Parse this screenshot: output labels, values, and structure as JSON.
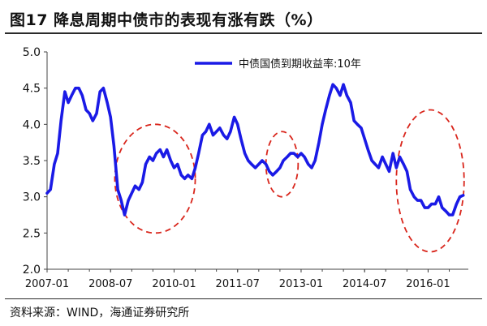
{
  "title": "图17 降息周期中债市的表现有涨有跌（%）",
  "source": "资料来源：WIND，海通证券研究所",
  "chart_data": {
    "type": "line",
    "xlabel": "",
    "ylabel": "",
    "ylim": [
      2.0,
      5.0
    ],
    "yticks": [
      "2.0",
      "2.5",
      "3.0",
      "3.5",
      "4.0",
      "4.5",
      "5.0"
    ],
    "xticks": [
      "2007-01",
      "2008-07",
      "2010-01",
      "2011-07",
      "2013-01",
      "2014-07",
      "2016-01"
    ],
    "grid": false,
    "legend_position": "top-right",
    "series_color": "#1a1ae6",
    "highlight_color": "#d9261c",
    "series": [
      {
        "name": "中债国债到期收益率:10年",
        "x": [
          2007.0,
          2007.08,
          2007.17,
          2007.25,
          2007.33,
          2007.42,
          2007.5,
          2007.58,
          2007.67,
          2007.75,
          2007.83,
          2007.92,
          2008.0,
          2008.08,
          2008.17,
          2008.25,
          2008.33,
          2008.42,
          2008.5,
          2008.58,
          2008.67,
          2008.75,
          2008.83,
          2008.92,
          2009.0,
          2009.08,
          2009.17,
          2009.25,
          2009.33,
          2009.42,
          2009.5,
          2009.58,
          2009.67,
          2009.75,
          2009.83,
          2009.92,
          2010.0,
          2010.08,
          2010.17,
          2010.25,
          2010.33,
          2010.42,
          2010.5,
          2010.58,
          2010.67,
          2010.75,
          2010.83,
          2010.92,
          2011.0,
          2011.08,
          2011.17,
          2011.25,
          2011.33,
          2011.42,
          2011.5,
          2011.58,
          2011.67,
          2011.75,
          2011.83,
          2011.92,
          2012.0,
          2012.08,
          2012.17,
          2012.25,
          2012.33,
          2012.42,
          2012.5,
          2012.58,
          2012.67,
          2012.75,
          2012.83,
          2012.92,
          2013.0,
          2013.08,
          2013.17,
          2013.25,
          2013.33,
          2013.42,
          2013.5,
          2013.58,
          2013.67,
          2013.75,
          2013.83,
          2013.92,
          2014.0,
          2014.08,
          2014.17,
          2014.25,
          2014.33,
          2014.42,
          2014.5,
          2014.58,
          2014.67,
          2014.75,
          2014.83,
          2014.92,
          2015.0,
          2015.08,
          2015.17,
          2015.25,
          2015.33,
          2015.42,
          2015.5,
          2015.58,
          2015.67,
          2015.75,
          2015.83,
          2015.92,
          2016.0,
          2016.08,
          2016.17,
          2016.25,
          2016.33,
          2016.42,
          2016.5,
          2016.58,
          2016.67,
          2016.75,
          2016.83
        ],
        "y": [
          3.05,
          3.1,
          3.45,
          3.6,
          4.05,
          4.45,
          4.3,
          4.4,
          4.5,
          4.5,
          4.4,
          4.2,
          4.15,
          4.05,
          4.15,
          4.45,
          4.5,
          4.3,
          4.1,
          3.7,
          3.1,
          2.95,
          2.75,
          2.95,
          3.05,
          3.15,
          3.1,
          3.2,
          3.45,
          3.55,
          3.5,
          3.6,
          3.65,
          3.55,
          3.65,
          3.5,
          3.4,
          3.45,
          3.3,
          3.25,
          3.3,
          3.25,
          3.4,
          3.6,
          3.85,
          3.9,
          4.0,
          3.85,
          3.9,
          3.95,
          3.85,
          3.8,
          3.9,
          4.1,
          4.0,
          3.8,
          3.6,
          3.5,
          3.45,
          3.4,
          3.45,
          3.5,
          3.45,
          3.35,
          3.3,
          3.35,
          3.4,
          3.5,
          3.55,
          3.6,
          3.6,
          3.55,
          3.6,
          3.55,
          3.45,
          3.4,
          3.5,
          3.75,
          4.0,
          4.2,
          4.4,
          4.55,
          4.5,
          4.4,
          4.55,
          4.4,
          4.3,
          4.05,
          4.0,
          3.95,
          3.8,
          3.65,
          3.5,
          3.45,
          3.4,
          3.55,
          3.45,
          3.35,
          3.6,
          3.4,
          3.55,
          3.45,
          3.35,
          3.1,
          3.0,
          2.95,
          2.95,
          2.85,
          2.85,
          2.9,
          2.9,
          3.0,
          2.85,
          2.8,
          2.75,
          2.75,
          2.9,
          3.0,
          3.02
        ]
      }
    ],
    "highlight_regions": [
      {
        "x_center": 2009.55,
        "y_center": 3.25,
        "x_radius": 0.95,
        "y_radius": 0.75
      },
      {
        "x_center": 2012.55,
        "y_center": 3.45,
        "x_radius": 0.38,
        "y_radius": 0.45
      },
      {
        "x_center": 2016.05,
        "y_center": 3.22,
        "x_radius": 0.8,
        "y_radius": 0.98
      }
    ]
  }
}
